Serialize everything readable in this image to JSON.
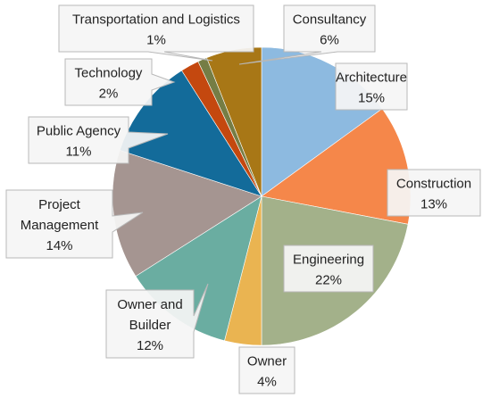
{
  "chart_data": {
    "type": "pie",
    "title": "",
    "slices": [
      {
        "label": "Architecture",
        "value": 15,
        "value_label": "15%",
        "color": "#8DBAE0"
      },
      {
        "label": "Construction",
        "value": 13,
        "value_label": "13%",
        "color": "#F5874A"
      },
      {
        "label": "Engineering",
        "value": 22,
        "value_label": "22%",
        "color": "#A3B18A"
      },
      {
        "label": "Owner",
        "value": 4,
        "value_label": "4%",
        "color": "#EAB451"
      },
      {
        "label": "Owner and Builder",
        "value": 12,
        "value_label": "12%",
        "color": "#6AADA1"
      },
      {
        "label": "Project Management",
        "value": 14,
        "value_label": "14%",
        "color": "#A59591"
      },
      {
        "label": "Public Agency",
        "value": 11,
        "value_label": "11%",
        "color": "#136B9A"
      },
      {
        "label": "Technology",
        "value": 2,
        "value_label": "2%",
        "color": "#C4480F"
      },
      {
        "label": "Transportation and Logistics",
        "value": 1,
        "value_label": "1%",
        "color": "#757D45"
      },
      {
        "label": "Consultancy",
        "value": 6,
        "value_label": "6%",
        "color": "#A87716"
      }
    ]
  }
}
